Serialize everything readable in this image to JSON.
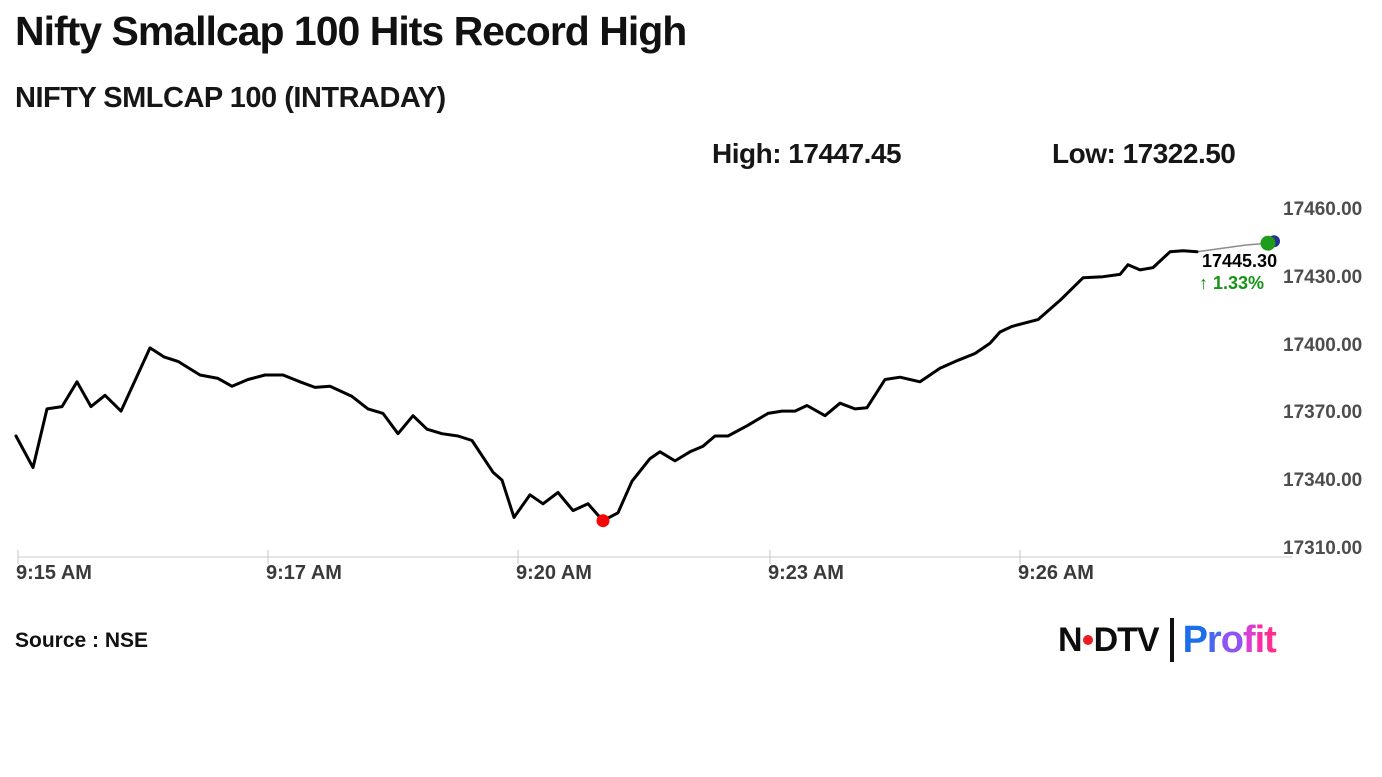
{
  "header": {
    "title": "Nifty Smallcap 100 Hits Record High",
    "subtitle": "NIFTY SMLCAP 100 (INTRADAY)",
    "high_label": "High: 17447.45",
    "low_label": "Low: 17322.50"
  },
  "chart_data": {
    "type": "line",
    "title": "NIFTY SMLCAP 100 (INTRADAY)",
    "x_tick_labels": [
      "9:15 AM",
      "9:17 AM",
      "9:20 AM",
      "9:23 AM",
      "9:26 AM"
    ],
    "x_tick_positions": [
      2,
      252,
      502,
      754,
      1004
    ],
    "x_range": [
      0,
      1252
    ],
    "y_tick_labels": [
      "17460.00",
      "17430.00",
      "17400.00",
      "17370.00",
      "17340.00",
      "17310.00"
    ],
    "y_range": [
      17310,
      17460
    ],
    "grid": "off",
    "legend": "none",
    "high": 17447.45,
    "low": 17322.5,
    "last": 17445.3,
    "last_label": "17445.30",
    "change_label": "↑ 1.33%",
    "line_color": "#000000",
    "connector_color": "#8c8c8c",
    "axis_color": "#cccccc",
    "low_marker_color": "#f50505",
    "end_marker_color": "#1f9c1a",
    "end_marker_back_color": "#28328f",
    "series": [
      {
        "name": "NIFTY SMLCAP 100",
        "points": [
          [
            0,
            17360
          ],
          [
            17,
            17346
          ],
          [
            31,
            17372
          ],
          [
            46,
            17373
          ],
          [
            61,
            17384
          ],
          [
            75,
            17373
          ],
          [
            89,
            17378
          ],
          [
            105,
            17371
          ],
          [
            134,
            17399
          ],
          [
            148,
            17395
          ],
          [
            162,
            17393
          ],
          [
            184,
            17387
          ],
          [
            202,
            17385.5
          ],
          [
            216,
            17382
          ],
          [
            232,
            17385
          ],
          [
            249,
            17387
          ],
          [
            267,
            17387
          ],
          [
            284,
            17384
          ],
          [
            299,
            17381.5
          ],
          [
            314,
            17382
          ],
          [
            336,
            17377.5
          ],
          [
            352,
            17372
          ],
          [
            367,
            17370
          ],
          [
            382,
            17361
          ],
          [
            397,
            17369
          ],
          [
            411,
            17363
          ],
          [
            426,
            17361
          ],
          [
            442,
            17360
          ],
          [
            456,
            17358
          ],
          [
            477,
            17344
          ],
          [
            486,
            17340.5
          ],
          [
            498,
            17324
          ],
          [
            514,
            17334
          ],
          [
            527,
            17330
          ],
          [
            542,
            17335
          ],
          [
            557,
            17327
          ],
          [
            572,
            17330
          ],
          [
            587,
            17322.5
          ],
          [
            602,
            17326
          ],
          [
            616,
            17340
          ],
          [
            634,
            17350
          ],
          [
            644,
            17353
          ],
          [
            659,
            17349
          ],
          [
            674,
            17353
          ],
          [
            687,
            17355.5
          ],
          [
            699,
            17360
          ],
          [
            712,
            17360
          ],
          [
            731,
            17364.5
          ],
          [
            752,
            17370
          ],
          [
            766,
            17371
          ],
          [
            779,
            17371
          ],
          [
            791,
            17373.5
          ],
          [
            809,
            17369
          ],
          [
            824,
            17374.5
          ],
          [
            839,
            17372
          ],
          [
            851,
            17372.5
          ],
          [
            869,
            17385
          ],
          [
            884,
            17386
          ],
          [
            904,
            17384
          ],
          [
            924,
            17390
          ],
          [
            942,
            17393.5
          ],
          [
            959,
            17396.5
          ],
          [
            974,
            17401
          ],
          [
            984,
            17406
          ],
          [
            996,
            17408.5
          ],
          [
            1022,
            17411.5
          ],
          [
            1044,
            17420
          ],
          [
            1067,
            17430
          ],
          [
            1087,
            17430.5
          ],
          [
            1104,
            17431.5
          ],
          [
            1112,
            17435.8
          ],
          [
            1124,
            17433.5
          ],
          [
            1137,
            17434.5
          ],
          [
            1154,
            17441.5
          ],
          [
            1167,
            17442
          ],
          [
            1181,
            17441.5
          ]
        ]
      }
    ],
    "connector_points": [
      [
        1181,
        17441.5
      ],
      [
        1230,
        17444.5
      ],
      [
        1252,
        17445.3
      ]
    ],
    "markers": {
      "low_point": [
        587,
        17322.5
      ],
      "end_point": [
        1252,
        17445.3
      ],
      "end_point_back": [
        1258,
        17446.2
      ]
    }
  },
  "footer": {
    "source": "Source : NSE",
    "logo": {
      "ndtv_n": "N",
      "ndtv_dtv": "DTV",
      "dot_color": "#ed1c24",
      "profit": "Profit",
      "profit_letter_colors": [
        "#1d6fe8",
        "#4a68ee",
        "#8f55f2",
        "#d93fd0",
        "#fa2da6",
        "#ff2e8f"
      ]
    }
  }
}
